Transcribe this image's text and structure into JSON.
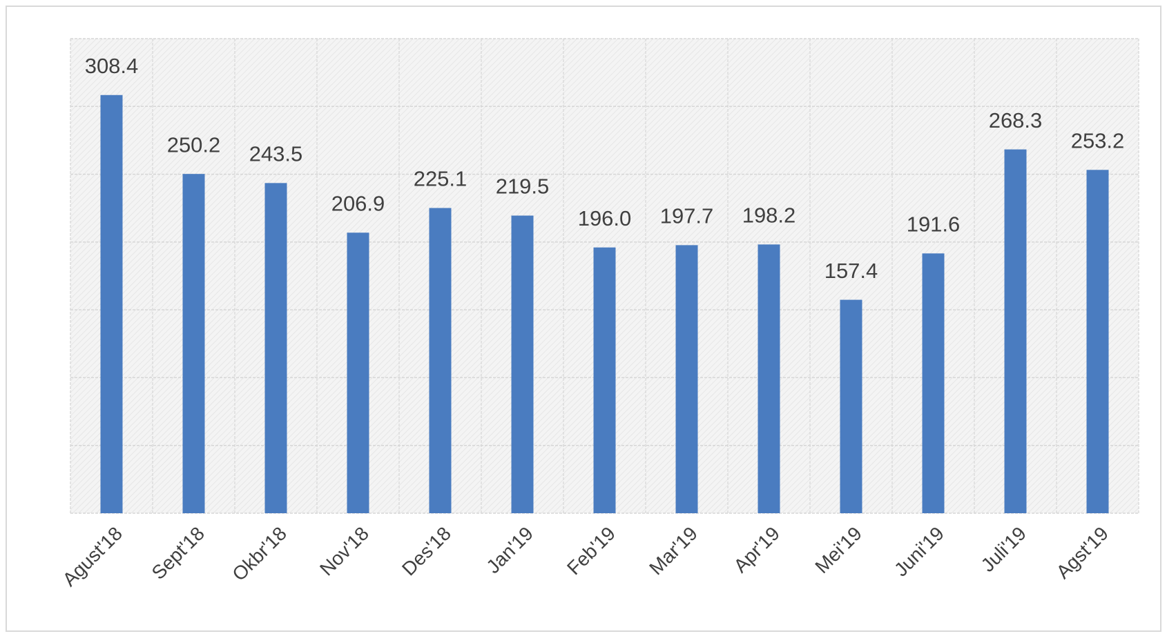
{
  "chart_data": {
    "type": "bar",
    "categories": [
      "Agust'18",
      "Sept'18",
      "Okbr'18",
      "Nov'18",
      "Des'18",
      "Jan'19",
      "Feb'19",
      "Mar'19",
      "Apr'19",
      "Mei'19",
      "Juni'19",
      "Juli'19",
      "Agst'19"
    ],
    "values": [
      308.4,
      250.2,
      243.5,
      206.9,
      225.1,
      219.5,
      196.0,
      197.7,
      198.2,
      157.4,
      191.6,
      268.3,
      253.2
    ],
    "value_labels": [
      "308.4",
      "250.2",
      "243.5",
      "206.9",
      "225.1",
      "219.5",
      "196.0",
      "197.7",
      "198.2",
      "157.4",
      "191.6",
      "268.3",
      "253.2"
    ],
    "color": "#4a7cc0",
    "ylim": [
      0,
      350
    ],
    "yticks": [
      0,
      50,
      100,
      150,
      200,
      250,
      300,
      350
    ],
    "grid": true
  }
}
